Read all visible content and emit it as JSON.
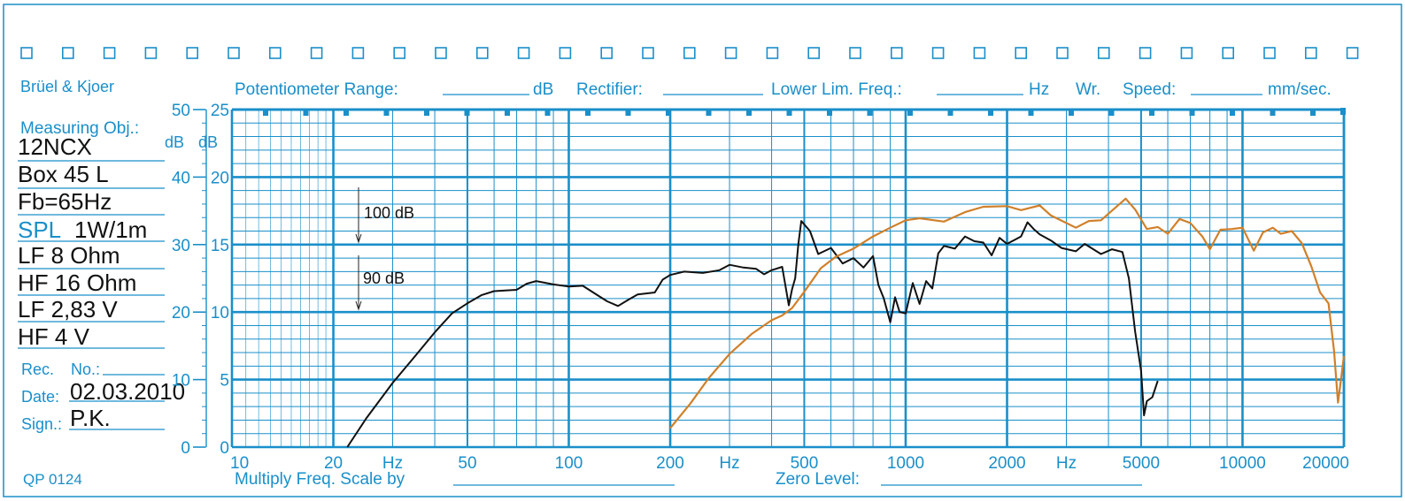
{
  "header": {
    "brand": "Brüel & Kjoer",
    "potentiometer_label": "Potentiometer Range:",
    "potentiometer_unit": "dB",
    "rectifier_label": "Rectifier:",
    "lower_lim_label": "Lower Lim. Freq.:",
    "lower_lim_unit": "Hz",
    "wr_label": "Wr.",
    "speed_label": "Speed:",
    "speed_unit": "mm/sec."
  },
  "left_panel": {
    "measuring_obj_label": "Measuring Obj.:",
    "lines": [
      "12NCX",
      "Box 45 L",
      "Fb=65Hz",
      "1W/1m",
      "LF 8 Ohm",
      "HF 16 Ohm",
      "LF 2,83 V",
      "HF 4 V"
    ],
    "spl_label": "SPL",
    "rec_label": "Rec.",
    "no_label": "No.:",
    "date_label": "Date:",
    "date_value": "02.03.2010",
    "sign_label": "Sign.:",
    "sign_value": "P.K."
  },
  "footer": {
    "code": "QP 0124",
    "multiply_label": "Multiply Freq. Scale by",
    "zero_level_label": "Zero Level:"
  },
  "colors": {
    "grid": "#1a8fc9",
    "lf_curve": "#111111",
    "hf_curve": "#d0802a"
  },
  "chart_data": {
    "type": "line",
    "x_scale": "log",
    "xlim": [
      10,
      20000
    ],
    "x_tick_labels": [
      "10",
      "20",
      "Hz",
      "50",
      "100",
      "200",
      "Hz",
      "500",
      "1000",
      "2000",
      "Hz",
      "5000",
      "10000",
      "20000"
    ],
    "y_left_ticks": [
      "50",
      "40",
      "30",
      "20",
      "10",
      "0"
    ],
    "y_left_unit": "dB",
    "y_right_ticks": [
      "25",
      "20",
      "15",
      "10",
      "5",
      "0"
    ],
    "y_right_unit": "dB",
    "ylim": [
      0,
      50
    ],
    "annotations": [
      "100 dB",
      "90 dB"
    ],
    "annotation_levels_ylabel_units": [
      40,
      30
    ],
    "grid": true,
    "series": [
      {
        "color": "#111111",
        "points": [
          [
            22,
            0
          ],
          [
            25,
            4.2
          ],
          [
            30,
            9.5
          ],
          [
            35,
            13.5
          ],
          [
            40,
            17
          ],
          [
            45,
            19.8
          ],
          [
            50,
            21.3
          ],
          [
            55,
            22.5
          ],
          [
            60,
            23.1
          ],
          [
            70,
            23.3
          ],
          [
            75,
            24.2
          ],
          [
            80,
            24.6
          ],
          [
            90,
            24.1
          ],
          [
            100,
            23.8
          ],
          [
            110,
            23.9
          ],
          [
            120,
            22.7
          ],
          [
            130,
            21.6
          ],
          [
            140,
            20.9
          ],
          [
            150,
            21.8
          ],
          [
            160,
            22.6
          ],
          [
            180,
            22.9
          ],
          [
            190,
            24.8
          ],
          [
            200,
            25.5
          ],
          [
            220,
            26
          ],
          [
            250,
            25.8
          ],
          [
            280,
            26.2
          ],
          [
            300,
            27
          ],
          [
            330,
            26.6
          ],
          [
            360,
            26.4
          ],
          [
            380,
            25.6
          ],
          [
            400,
            26.2
          ],
          [
            430,
            26.7
          ],
          [
            450,
            21
          ],
          [
            460,
            23.4
          ],
          [
            470,
            25
          ],
          [
            480,
            30
          ],
          [
            490,
            33.5
          ],
          [
            520,
            32
          ],
          [
            550,
            28.6
          ],
          [
            600,
            29.5
          ],
          [
            650,
            27.2
          ],
          [
            700,
            28
          ],
          [
            750,
            26.6
          ],
          [
            800,
            28.3
          ],
          [
            830,
            24
          ],
          [
            860,
            22.1
          ],
          [
            900,
            18.5
          ],
          [
            930,
            22.2
          ],
          [
            960,
            20
          ],
          [
            1000,
            19.8
          ],
          [
            1050,
            24.3
          ],
          [
            1100,
            21.2
          ],
          [
            1150,
            24.6
          ],
          [
            1200,
            23.5
          ],
          [
            1250,
            28.7
          ],
          [
            1300,
            29.8
          ],
          [
            1400,
            29.4
          ],
          [
            1500,
            31.2
          ],
          [
            1600,
            30.5
          ],
          [
            1700,
            30.3
          ],
          [
            1800,
            28.4
          ],
          [
            1900,
            31
          ],
          [
            2000,
            30.1
          ],
          [
            2200,
            31.2
          ],
          [
            2300,
            33.3
          ],
          [
            2400,
            32.3
          ],
          [
            2500,
            31.5
          ],
          [
            2700,
            30.6
          ],
          [
            2900,
            29.5
          ],
          [
            3200,
            29
          ],
          [
            3400,
            30.1
          ],
          [
            3800,
            28.6
          ],
          [
            4100,
            29.3
          ],
          [
            4400,
            28.9
          ],
          [
            4600,
            25
          ],
          [
            4800,
            17.1
          ],
          [
            5000,
            11.3
          ],
          [
            5100,
            4.7
          ],
          [
            5200,
            6.8
          ],
          [
            5400,
            7.4
          ],
          [
            5600,
            9.8
          ]
        ]
      },
      {
        "color": "#d0802a",
        "points": [
          [
            200,
            2.8
          ],
          [
            230,
            6.5
          ],
          [
            260,
            10.2
          ],
          [
            300,
            13.8
          ],
          [
            350,
            16.8
          ],
          [
            400,
            18.8
          ],
          [
            430,
            19.5
          ],
          [
            460,
            20.6
          ],
          [
            500,
            23
          ],
          [
            560,
            26.5
          ],
          [
            620,
            28.2
          ],
          [
            700,
            29.4
          ],
          [
            800,
            31.2
          ],
          [
            900,
            32.5
          ],
          [
            1000,
            33.6
          ],
          [
            1100,
            33.9
          ],
          [
            1300,
            33.4
          ],
          [
            1500,
            34.8
          ],
          [
            1700,
            35.6
          ],
          [
            2000,
            35.7
          ],
          [
            2200,
            35.1
          ],
          [
            2500,
            35.8
          ],
          [
            2700,
            34.3
          ],
          [
            3000,
            33.2
          ],
          [
            3200,
            32.5
          ],
          [
            3500,
            33.5
          ],
          [
            3800,
            33.6
          ],
          [
            4200,
            35.5
          ],
          [
            4500,
            36.8
          ],
          [
            4800,
            35.2
          ],
          [
            5200,
            32.3
          ],
          [
            5600,
            32.6
          ],
          [
            6000,
            31.6
          ],
          [
            6500,
            33.8
          ],
          [
            7000,
            33.2
          ],
          [
            7600,
            31.2
          ],
          [
            8000,
            29.3
          ],
          [
            8600,
            32.2
          ],
          [
            9300,
            32.3
          ],
          [
            10000,
            32.5
          ],
          [
            10800,
            29.1
          ],
          [
            11500,
            31.8
          ],
          [
            12300,
            32.5
          ],
          [
            13000,
            31.6
          ],
          [
            14000,
            32
          ],
          [
            15000,
            30.2
          ],
          [
            16000,
            26.8
          ],
          [
            17000,
            22.9
          ],
          [
            18000,
            21.3
          ],
          [
            18700,
            14.2
          ],
          [
            19200,
            6.6
          ],
          [
            19600,
            10
          ],
          [
            20000,
            13.5
          ]
        ]
      }
    ]
  }
}
